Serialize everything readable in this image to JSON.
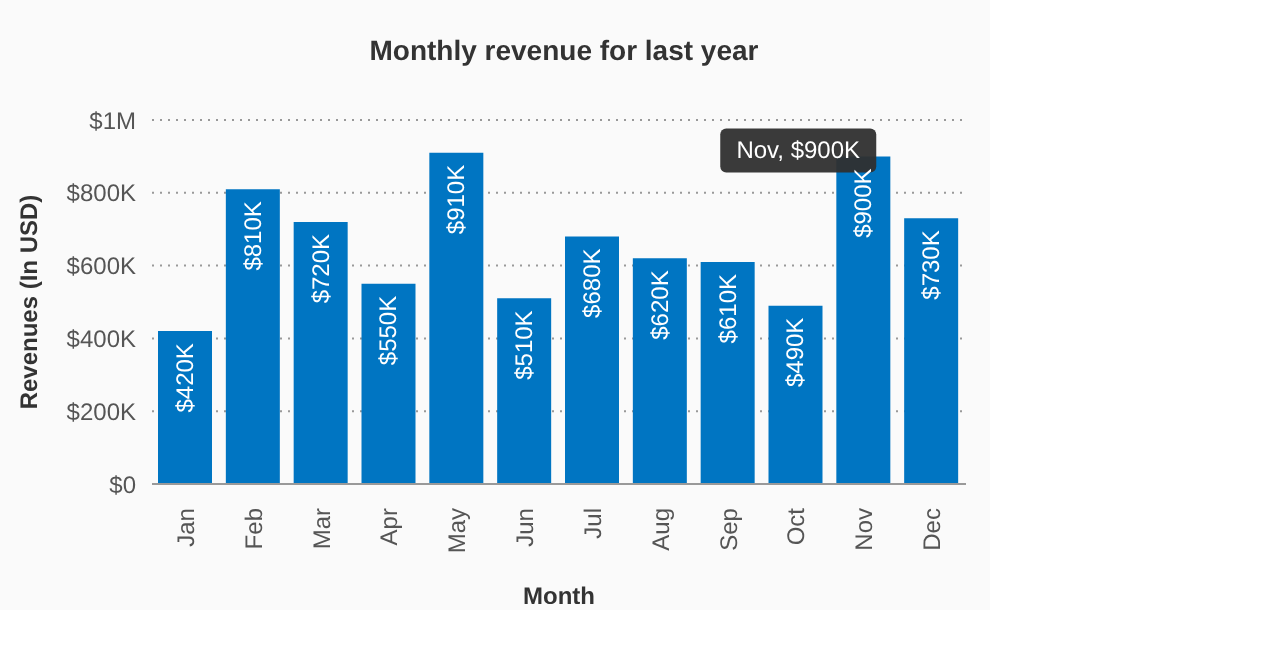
{
  "chart_data": {
    "type": "bar",
    "title": "Monthly revenue for last year",
    "xlabel": "Month",
    "ylabel": "Revenues (In USD)",
    "categories": [
      "Jan",
      "Feb",
      "Mar",
      "Apr",
      "May",
      "Jun",
      "Jul",
      "Aug",
      "Sep",
      "Oct",
      "Nov",
      "Dec"
    ],
    "values": [
      420000,
      810000,
      720000,
      550000,
      910000,
      510000,
      680000,
      620000,
      610000,
      490000,
      900000,
      730000
    ],
    "value_labels": [
      "$420K",
      "$810K",
      "$720K",
      "$550K",
      "$910K",
      "$510K",
      "$680K",
      "$620K",
      "$610K",
      "$490K",
      "$900K",
      "$730K"
    ],
    "color": "#0075c2",
    "ylim": [
      0,
      1000000
    ],
    "yticks": [
      {
        "value": 0,
        "label": "$0"
      },
      {
        "value": 200000,
        "label": "$200K"
      },
      {
        "value": 400000,
        "label": "$400K"
      },
      {
        "value": 600000,
        "label": "$600K"
      },
      {
        "value": 800000,
        "label": "$800K"
      },
      {
        "value": 1000000,
        "label": "$1M"
      }
    ],
    "grid": "y",
    "annotations": [
      {
        "text": "Nov, $900K",
        "x": "Nov",
        "y": 900000
      }
    ]
  }
}
